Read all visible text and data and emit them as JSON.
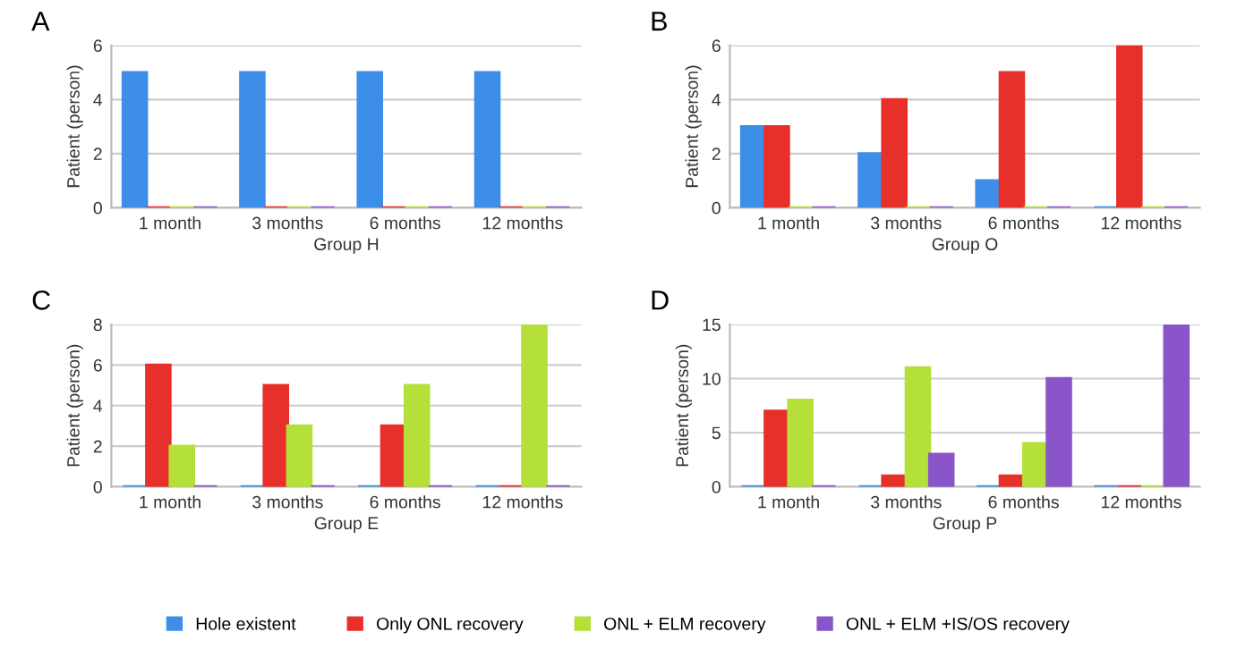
{
  "chart_data": [
    {
      "type": "bar",
      "title": "A",
      "xlabel": "Group H",
      "ylabel": "Patient (person)",
      "categories": [
        "1 month",
        "3 months",
        "6 months",
        "12 months"
      ],
      "ylim": [
        0,
        6
      ],
      "yticks": [
        0,
        2,
        4,
        6
      ],
      "grid": "y",
      "series": [
        {
          "color": "#3d8ee8",
          "values": [
            5,
            5,
            5,
            5
          ]
        },
        {
          "color": "#e8302a",
          "values": [
            0,
            0,
            0,
            0
          ]
        },
        {
          "color": "#b5e03a",
          "values": [
            0,
            0,
            0,
            0
          ]
        },
        {
          "color": "#8a55c8",
          "values": [
            0,
            0,
            0,
            0
          ]
        }
      ]
    },
    {
      "type": "bar",
      "title": "B",
      "xlabel": "Group O",
      "ylabel": "Patient (person)",
      "categories": [
        "1 month",
        "3 months",
        "6 months",
        "12 months"
      ],
      "ylim": [
        0,
        6
      ],
      "yticks": [
        0,
        2,
        4,
        6
      ],
      "grid": "y",
      "series": [
        {
          "color": "#3d8ee8",
          "values": [
            3,
            2,
            1,
            0
          ]
        },
        {
          "color": "#e8302a",
          "values": [
            3,
            4,
            5,
            6
          ]
        },
        {
          "color": "#b5e03a",
          "values": [
            0,
            0,
            0,
            0
          ]
        },
        {
          "color": "#8a55c8",
          "values": [
            0,
            0,
            0,
            0
          ]
        }
      ]
    },
    {
      "type": "bar",
      "title": "C",
      "xlabel": "Group E",
      "ylabel": "Patient (person)",
      "categories": [
        "1 month",
        "3 months",
        "6 months",
        "12 months"
      ],
      "ylim": [
        0,
        8
      ],
      "yticks": [
        0,
        2,
        4,
        6,
        8
      ],
      "grid": "y",
      "series": [
        {
          "color": "#3d8ee8",
          "values": [
            0,
            0,
            0,
            0
          ]
        },
        {
          "color": "#e8302a",
          "values": [
            6,
            5,
            3,
            0
          ]
        },
        {
          "color": "#b5e03a",
          "values": [
            2,
            3,
            5,
            8
          ]
        },
        {
          "color": "#8a55c8",
          "values": [
            0,
            0,
            0,
            0
          ]
        }
      ]
    },
    {
      "type": "bar",
      "title": "D",
      "xlabel": "Group P",
      "ylabel": "Patient (person)",
      "categories": [
        "1 month",
        "3 months",
        "6 months",
        "12 months"
      ],
      "ylim": [
        0,
        15
      ],
      "yticks": [
        0,
        5,
        10,
        15
      ],
      "grid": "y",
      "legend": "bottom",
      "series": [
        {
          "name": "Hole existent",
          "color": "#3d8ee8",
          "values": [
            0,
            0,
            0,
            0
          ]
        },
        {
          "name": "Only ONL recovery",
          "color": "#e8302a",
          "values": [
            7,
            1,
            1,
            0
          ]
        },
        {
          "name": "ONL + ELM recovery",
          "color": "#b5e03a",
          "values": [
            8,
            11,
            4,
            0
          ]
        },
        {
          "name": "ONL + ELM +IS/OS recovery",
          "color": "#8a55c8",
          "values": [
            0,
            3,
            10,
            15
          ]
        }
      ]
    }
  ]
}
